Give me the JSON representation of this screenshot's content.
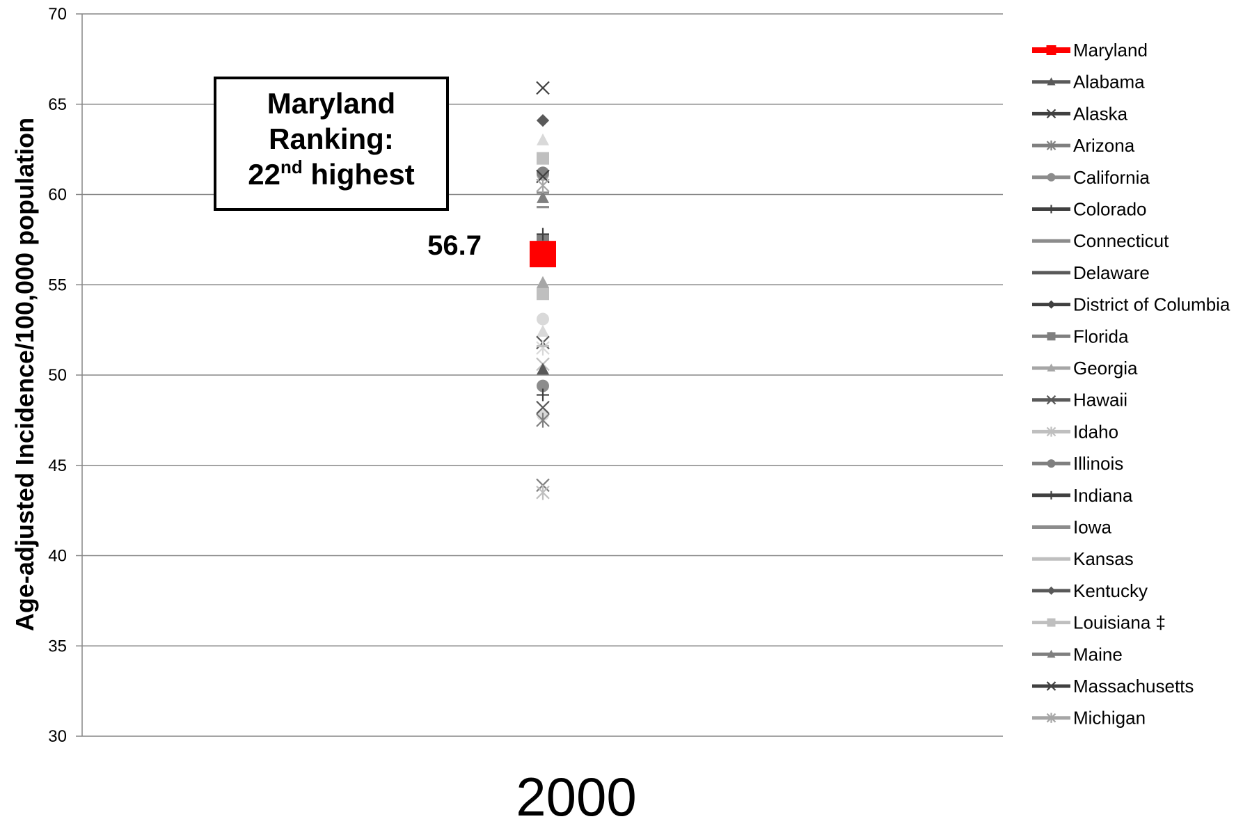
{
  "chart_data": {
    "type": "scatter",
    "ylabel": "Age-adjusted Incidence/100,000 population",
    "xlabel": "",
    "categories": [
      "2000"
    ],
    "ylim": [
      30,
      70
    ],
    "yticks": [
      30,
      35,
      40,
      45,
      50,
      55,
      60,
      65,
      70
    ],
    "grid": true,
    "legend_position": "right",
    "highlight": {
      "series": "Maryland",
      "value_label": "56.7",
      "annotation": {
        "line1": "Maryland",
        "line2": "Ranking:",
        "line3_number": "22",
        "line3_suffix": "nd",
        "line3_rest": " highest"
      }
    },
    "series": [
      {
        "name": "Maryland",
        "values": [
          56.7
        ],
        "marker": "square",
        "color": "#ff0000"
      },
      {
        "name": "Alabama",
        "values": [
          50.3
        ],
        "marker": "triangle",
        "color": "#595959"
      },
      {
        "name": "Alaska",
        "values": [
          65.9
        ],
        "marker": "x",
        "color": "#404040"
      },
      {
        "name": "Arizona",
        "values": [
          47.5
        ],
        "marker": "star",
        "color": "#7f7f7f"
      },
      {
        "name": "California",
        "values": [
          49.4
        ],
        "marker": "circle",
        "color": "#8c8c8c"
      },
      {
        "name": "Colorado",
        "values": [
          48.9
        ],
        "marker": "plus",
        "color": "#404040"
      },
      {
        "name": "Connecticut",
        "values": [
          59.3
        ],
        "marker": "dash",
        "color": "#8c8c8c"
      },
      {
        "name": "Delaware",
        "values": [
          57.6
        ],
        "marker": "dash",
        "color": "#595959"
      },
      {
        "name": "District of Columbia",
        "values": [
          64.1
        ],
        "marker": "diamond",
        "color": "#404040"
      },
      {
        "name": "Florida",
        "values": [
          57.5
        ],
        "marker": "square",
        "color": "#7f7f7f"
      },
      {
        "name": "Georgia",
        "values": [
          55.1
        ],
        "marker": "triangle",
        "color": "#a6a6a6"
      },
      {
        "name": "Hawaii",
        "values": [
          48.2
        ],
        "marker": "x",
        "color": "#595959"
      },
      {
        "name": "Idaho",
        "values": [
          43.5
        ],
        "marker": "star",
        "color": "#bfbfbf"
      },
      {
        "name": "Illinois",
        "values": [
          61.2
        ],
        "marker": "circle",
        "color": "#7f7f7f"
      },
      {
        "name": "Indiana",
        "values": [
          57.8
        ],
        "marker": "plus",
        "color": "#404040"
      },
      {
        "name": "Iowa",
        "values": [
          60.1
        ],
        "marker": "dash",
        "color": "#8c8c8c"
      },
      {
        "name": "Kansas",
        "values": [
          51.6
        ],
        "marker": "dash",
        "color": "#bfbfbf"
      },
      {
        "name": "Kentucky",
        "values": [
          64.1
        ],
        "marker": "diamond",
        "color": "#595959"
      },
      {
        "name": "Louisiana ‡",
        "values": [
          62.0
        ],
        "marker": "square",
        "color": "#bfbfbf"
      },
      {
        "name": "Maine",
        "values": [
          59.8
        ],
        "marker": "triangle",
        "color": "#7f7f7f"
      },
      {
        "name": "Massachusetts",
        "values": [
          61.0
        ],
        "marker": "x",
        "color": "#404040"
      },
      {
        "name": "Michigan",
        "values": [
          60.5
        ],
        "marker": "star",
        "color": "#a6a6a6"
      }
    ],
    "other_points": [
      {
        "value": 63.0,
        "marker": "triangle",
        "color": "#d9d9d9"
      },
      {
        "value": 62.0,
        "marker": "square",
        "color": "#d9d9d9"
      },
      {
        "value": 61.1,
        "marker": "circle",
        "color": "#a6a6a6"
      },
      {
        "value": 54.6,
        "marker": "circle",
        "color": "#d9d9d9"
      },
      {
        "value": 54.5,
        "marker": "square",
        "color": "#bfbfbf"
      },
      {
        "value": 53.1,
        "marker": "circle",
        "color": "#d9d9d9"
      },
      {
        "value": 52.4,
        "marker": "triangle",
        "color": "#d9d9d9"
      },
      {
        "value": 51.8,
        "marker": "x",
        "color": "#595959"
      },
      {
        "value": 51.5,
        "marker": "star",
        "color": "#d9d9d9"
      },
      {
        "value": 50.6,
        "marker": "x",
        "color": "#bfbfbf"
      },
      {
        "value": 47.8,
        "marker": "circle",
        "color": "#d9d9d9"
      },
      {
        "value": 43.9,
        "marker": "x",
        "color": "#7f7f7f"
      }
    ]
  }
}
